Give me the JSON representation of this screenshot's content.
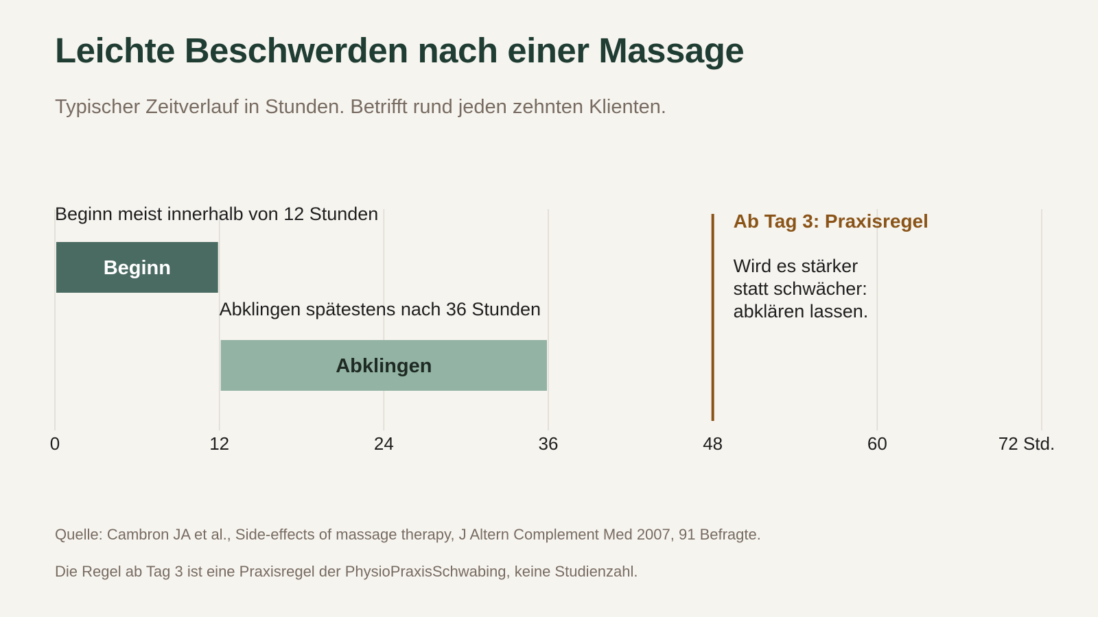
{
  "title": "Leichte Beschwerden nach einer Massage",
  "subtitle": "Typischer Zeitverlauf in Stunden. Betrifft rund jeden zehnten Klienten.",
  "footnotes": {
    "source": "Quelle: Cambron JA et al., Side-effects of massage therapy, J Altern Complement Med 2007, 91 Befragte.",
    "rule": "Die Regel ab Tag 3 ist eine Praxisregel der PhysioPraxisSchwabing, keine Studienzahl."
  },
  "colors": {
    "background": "#f6f4ef",
    "title": "#1f3d33",
    "muted": "#776b61",
    "onset_bar": "#4a6b62",
    "decay_bar": "#93b3a4",
    "accent": "#8a5418",
    "grid": "#dedad2",
    "text": "#1e1e1e"
  },
  "chart_data": {
    "type": "bar",
    "orientation": "horizontal-range",
    "x_unit": "Stunden",
    "xlim": [
      0,
      72
    ],
    "ticks": [
      0,
      12,
      24,
      36,
      48,
      60,
      72
    ],
    "tick_labels": [
      "0",
      "12",
      "24",
      "36",
      "48",
      "60",
      "72 Std."
    ],
    "grid": true,
    "series": [
      {
        "name": "Beginn",
        "start": 0,
        "end": 12,
        "annotation": "Beginn meist innerhalb von 12 Stunden"
      },
      {
        "name": "Abklingen",
        "start": 12,
        "end": 36,
        "annotation": "Abklingen spätestens nach 36 Stunden"
      }
    ],
    "reference_line": {
      "x": 48,
      "title": "Ab Tag 3: Praxisregel",
      "text_lines": [
        "Wird es stärker",
        "statt schwächer:",
        "abklären lassen."
      ]
    }
  }
}
